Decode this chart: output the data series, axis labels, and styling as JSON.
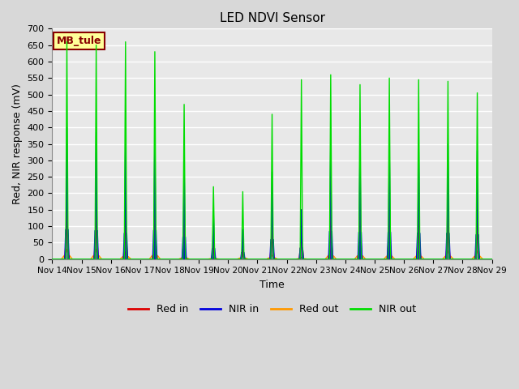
{
  "title": "LED NDVI Sensor",
  "ylabel": "Red, NIR response (mV)",
  "xlabel": "Time",
  "annotation_text": "MB_tule",
  "ylim": [
    0,
    700
  ],
  "colors": {
    "red_in": "#dd0000",
    "nir_in": "#0000dd",
    "red_out": "#ff9900",
    "nir_out": "#00dd00"
  },
  "background_color": "#e8e8e8",
  "grid_color": "#ffffff",
  "annotation_bg": "#ffff99",
  "annotation_border": "#880000",
  "legend_labels": [
    "Red in",
    "NIR in",
    "Red out",
    "NIR out"
  ],
  "xtick_labels": [
    "Nov 14",
    "Nov 15",
    "Nov 16",
    "Nov 17",
    "Nov 18",
    "Nov 19",
    "Nov 20",
    "Nov 21",
    "Nov 22",
    "Nov 23",
    "Nov 24",
    "Nov 25",
    "Nov 26",
    "Nov 27",
    "Nov 28",
    "Nov 29"
  ],
  "ytick_values": [
    0,
    50,
    100,
    150,
    200,
    250,
    300,
    350,
    400,
    450,
    500,
    550,
    600,
    650,
    700
  ],
  "days": [
    {
      "nir_out": 660,
      "nir_in": 400,
      "red_in": 200,
      "red_out": 30
    },
    {
      "nir_out": 650,
      "nir_in": 385,
      "red_in": 195,
      "red_out": 30
    },
    {
      "nir_out": 660,
      "nir_in": 350,
      "red_in": 190,
      "red_out": 22
    },
    {
      "nir_out": 630,
      "nir_in": 390,
      "red_in": 185,
      "red_out": 30
    },
    {
      "nir_out": 470,
      "nir_in": 300,
      "red_in": 140,
      "red_out": 10
    },
    {
      "nir_out": 220,
      "nir_in": 145,
      "red_in": 55,
      "red_out": 5
    },
    {
      "nir_out": 205,
      "nir_in": 90,
      "red_in": 30,
      "red_out": 10
    },
    {
      "nir_out": 440,
      "nir_in": 265,
      "red_in": 130,
      "red_out": 12
    },
    {
      "nir_out": 545,
      "nir_in": 150,
      "red_in": 150,
      "red_out": 5
    },
    {
      "nir_out": 560,
      "nir_in": 375,
      "red_in": 180,
      "red_out": 28
    },
    {
      "nir_out": 530,
      "nir_in": 365,
      "red_in": 180,
      "red_out": 28
    },
    {
      "nir_out": 550,
      "nir_in": 365,
      "red_in": 180,
      "red_out": 25
    },
    {
      "nir_out": 545,
      "nir_in": 350,
      "red_in": 170,
      "red_out": 25
    },
    {
      "nir_out": 540,
      "nir_in": 350,
      "red_in": 165,
      "red_out": 25
    },
    {
      "nir_out": 505,
      "nir_in": 330,
      "red_in": 160,
      "red_out": 25
    }
  ]
}
